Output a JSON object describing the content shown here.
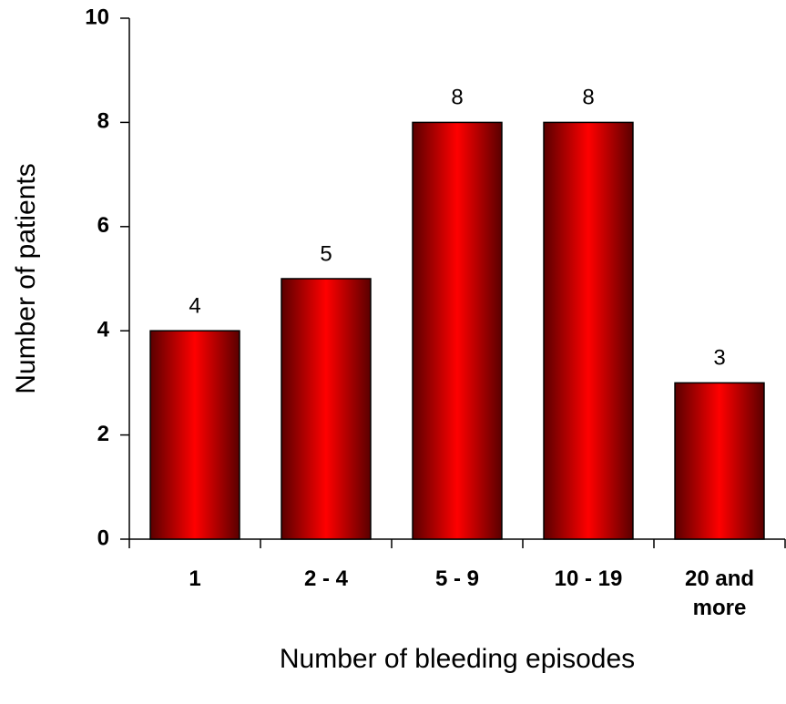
{
  "chart_data": {
    "type": "bar",
    "categories": [
      "1",
      "2 - 4",
      "5 - 9",
      "10 - 19",
      "20 and more"
    ],
    "values": [
      4,
      5,
      8,
      8,
      3
    ],
    "color": "#ff0000",
    "ylim": [
      0,
      10
    ],
    "yticks": [
      0,
      2,
      4,
      6,
      8,
      10
    ],
    "xlabel": "Number of bleeding episodes",
    "ylabel": "Number of patients"
  }
}
